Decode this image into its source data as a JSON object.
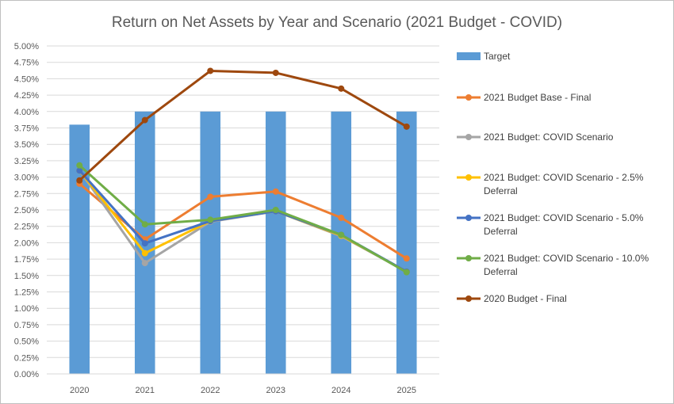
{
  "chart_data": {
    "type": "bar",
    "title": "Return on Net Assets by Year and Scenario (2021 Budget - COVID)",
    "categories": [
      "2020",
      "2021",
      "2022",
      "2023",
      "2024",
      "2025"
    ],
    "ylim": [
      0,
      5
    ],
    "ytick_step": 0.25,
    "yticks": [
      "0.00%",
      "0.25%",
      "0.50%",
      "0.75%",
      "1.00%",
      "1.25%",
      "1.50%",
      "1.75%",
      "2.00%",
      "2.25%",
      "2.50%",
      "2.75%",
      "3.00%",
      "3.25%",
      "3.50%",
      "3.75%",
      "4.00%",
      "4.25%",
      "4.50%",
      "4.75%",
      "5.00%"
    ],
    "grid": true,
    "legend_position": "right",
    "series": [
      {
        "name": "Target",
        "kind": "bar",
        "color": "#5b9bd5",
        "values": [
          3.8,
          4.0,
          4.0,
          4.0,
          4.0,
          4.0
        ]
      },
      {
        "name": "2021 Budget Base - Final",
        "kind": "line",
        "color": "#ed7d31",
        "values": [
          2.9,
          2.05,
          2.7,
          2.78,
          2.38,
          1.76
        ]
      },
      {
        "name": "2021 Budget: COVID Scenario",
        "kind": "line",
        "color": "#a5a5a5",
        "values": [
          3.1,
          1.69,
          2.32,
          2.48,
          2.1,
          1.56
        ]
      },
      {
        "name": "2021 Budget: COVID Scenario - 2.5% Deferral",
        "kind": "line",
        "color": "#ffc000",
        "values": [
          3.1,
          1.84,
          2.33,
          2.48,
          2.11,
          1.56
        ]
      },
      {
        "name": "2021 Budget: COVID Scenario - 5.0% Deferral",
        "kind": "line",
        "color": "#4472c4",
        "values": [
          3.1,
          1.99,
          2.33,
          2.48,
          2.12,
          1.56
        ]
      },
      {
        "name": "2021 Budget: COVID Scenario - 10.0% Deferral",
        "kind": "line",
        "color": "#70ad47",
        "values": [
          3.18,
          2.28,
          2.35,
          2.5,
          2.12,
          1.55
        ]
      },
      {
        "name": "2020 Budget - Final",
        "kind": "line",
        "color": "#9e480e",
        "values": [
          2.95,
          3.87,
          4.62,
          4.59,
          4.35,
          3.77
        ]
      }
    ],
    "legend_lines": [
      [
        "Target"
      ],
      [
        "2021 Budget Base - Final"
      ],
      [
        "2021 Budget: COVID Scenario"
      ],
      [
        "2021 Budget: COVID Scenario - 2.5%",
        "Deferral"
      ],
      [
        "2021 Budget: COVID Scenario - 5.0%",
        "Deferral"
      ],
      [
        "2021 Budget: COVID Scenario - 10.0%",
        "Deferral"
      ],
      [
        "2020 Budget - Final"
      ]
    ]
  }
}
